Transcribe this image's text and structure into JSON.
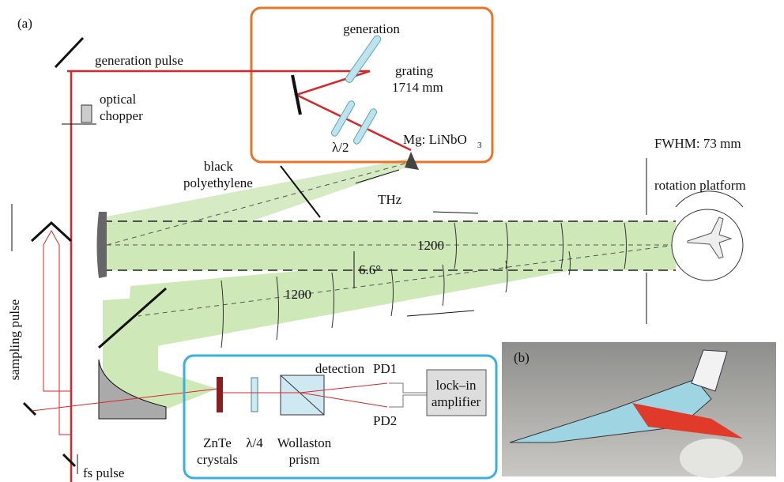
{
  "panel_a": {
    "label": "(a)",
    "generation": {
      "title": "generation",
      "pulse": "generation pulse",
      "grating": "grating",
      "grating_distance": "1714 mm",
      "half_wave": "λ/2",
      "crystal": "Mg: LiNbO",
      "crystal_subscript": "3"
    },
    "chopper": {
      "line1": "optical",
      "line2": "chopper"
    },
    "filter": {
      "line1": "black",
      "line2": "polyethylene"
    },
    "thz": "THz",
    "fwhm": "FWHM: 73 mm",
    "rotation": "rotation platform",
    "distance_upper": "1200",
    "distance_lower": "1200",
    "angle": "6.6°",
    "sampling_pulse": "sampling pulse",
    "fs_pulse": "fs pulse",
    "detection": {
      "title": "detection",
      "pd1": "PD1",
      "pd2": "PD2",
      "lockin_line1": "lock–in",
      "lockin_line2": "amplifier",
      "crystal_line1": "ZnTe",
      "crystal_line2": "crystals",
      "quarter_wave": "λ/4",
      "prism_line1": "Wollaston",
      "prism_line2": "prism"
    }
  },
  "panel_b": {
    "label": "(b)"
  }
}
